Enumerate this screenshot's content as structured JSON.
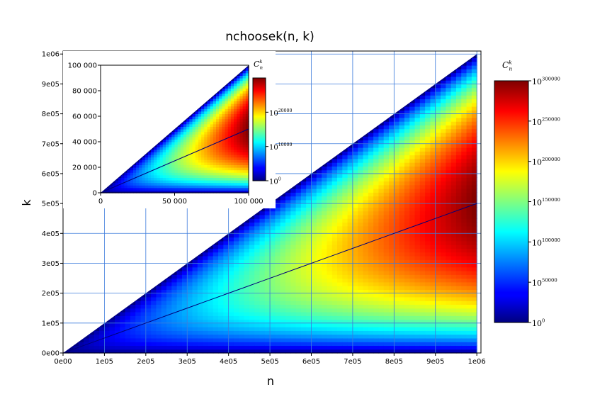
{
  "chart_data": [
    {
      "type": "heatmap",
      "title": "nchoosek(n, k)",
      "xlabel": "n",
      "ylabel": "k",
      "xlim": [
        0,
        1010000
      ],
      "ylim": [
        0,
        1010000
      ],
      "x_ticks": [
        0,
        100000,
        200000,
        300000,
        400000,
        500000,
        600000,
        700000,
        800000,
        900000,
        1000000
      ],
      "x_tick_labels": [
        "0e00",
        "1e05",
        "2e05",
        "3e05",
        "4e05",
        "5e05",
        "6e05",
        "7e05",
        "8e05",
        "9e05",
        "1e06"
      ],
      "y_ticks": [
        0,
        100000,
        200000,
        300000,
        400000,
        500000,
        600000,
        700000,
        800000,
        900000,
        1000000
      ],
      "y_tick_labels": [
        "0e00",
        "1e05",
        "2e05",
        "3e05",
        "4e05",
        "5e05",
        "6e05",
        "7e05",
        "8e05",
        "9e05",
        "1e06"
      ],
      "grid": true,
      "colormap": "jet",
      "value_scale": "log10",
      "max_line": {
        "k": "n/2"
      },
      "colorbar": {
        "label_base": "C",
        "label_sub": "n",
        "label_sup": "k",
        "range": [
          0,
          300000
        ],
        "ticks": [
          {
            "exp": 0,
            "base": "10",
            "sup": "0"
          },
          {
            "exp": 50000,
            "base": "10",
            "sup": "50000"
          },
          {
            "exp": 100000,
            "base": "10",
            "sup": "100000"
          },
          {
            "exp": 150000,
            "base": "10",
            "sup": "150000"
          },
          {
            "exp": 200000,
            "base": "10",
            "sup": "200000"
          },
          {
            "exp": 250000,
            "base": "10",
            "sup": "250000"
          },
          {
            "exp": 300000,
            "base": "10",
            "sup": "300000"
          }
        ]
      }
    },
    {
      "type": "heatmap",
      "title": "",
      "xlabel": "",
      "ylabel": "",
      "xlim": [
        0,
        100000
      ],
      "ylim": [
        0,
        100000
      ],
      "x_ticks": [
        0,
        50000,
        100000
      ],
      "x_tick_labels": [
        "0",
        "50 000",
        "100 000"
      ],
      "y_ticks": [
        0,
        20000,
        40000,
        60000,
        80000,
        100000
      ],
      "y_tick_labels": [
        "0",
        "20 000",
        "40 000",
        "60 000",
        "80 000",
        "100 000"
      ],
      "grid": false,
      "colormap": "jet",
      "value_scale": "log10",
      "max_line": {
        "k": "n/2"
      },
      "colorbar": {
        "label_base": "C",
        "label_sub": "n",
        "label_sup": "k",
        "range": [
          0,
          30000
        ],
        "ticks": [
          {
            "exp": 0,
            "base": "10",
            "sup": "0"
          },
          {
            "exp": 10000,
            "base": "10",
            "sup": "10000"
          },
          {
            "exp": 20000,
            "base": "10",
            "sup": "20000"
          }
        ]
      }
    }
  ],
  "colors": {
    "grid": "#3d7cdc",
    "line": "#00007a"
  }
}
